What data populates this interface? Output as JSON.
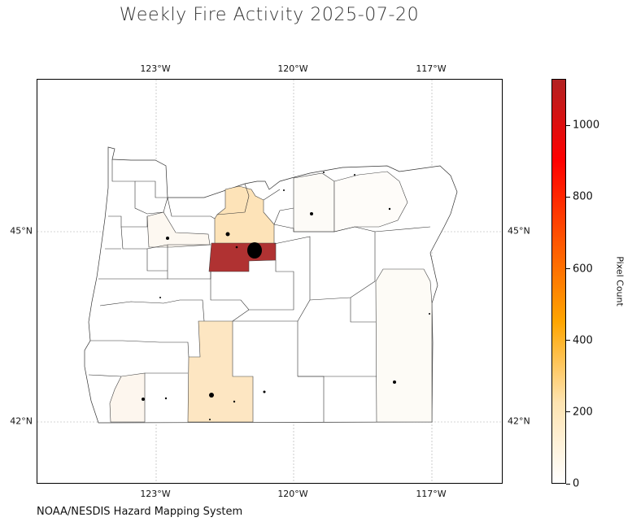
{
  "title": "Weekly Fire Activity 2025-07-20",
  "source": "NOAA/NESDIS Hazard Mapping System",
  "colorbar": {
    "label": "Pixel Count",
    "min": 0,
    "max": 1130,
    "ticks": [
      "0",
      "200",
      "400",
      "600",
      "800",
      "1000"
    ],
    "tick_values": [
      0,
      200,
      400,
      600,
      800,
      1000
    ],
    "colors": [
      "#ffffff",
      "#fde3b0",
      "#ffa500",
      "#ff5500",
      "#ff0000",
      "#b22222"
    ]
  },
  "map": {
    "lon_ticks": [
      "123°W",
      "120°W",
      "117°W"
    ],
    "lat_ticks": [
      "45°N",
      "42°N"
    ],
    "region": "Oregon",
    "county_values": {
      "highlight_central": 1130,
      "north_central": 140,
      "central_south": 140,
      "southwest": 40,
      "southeast": 20,
      "northeast": 15,
      "willamette": 25
    }
  }
}
